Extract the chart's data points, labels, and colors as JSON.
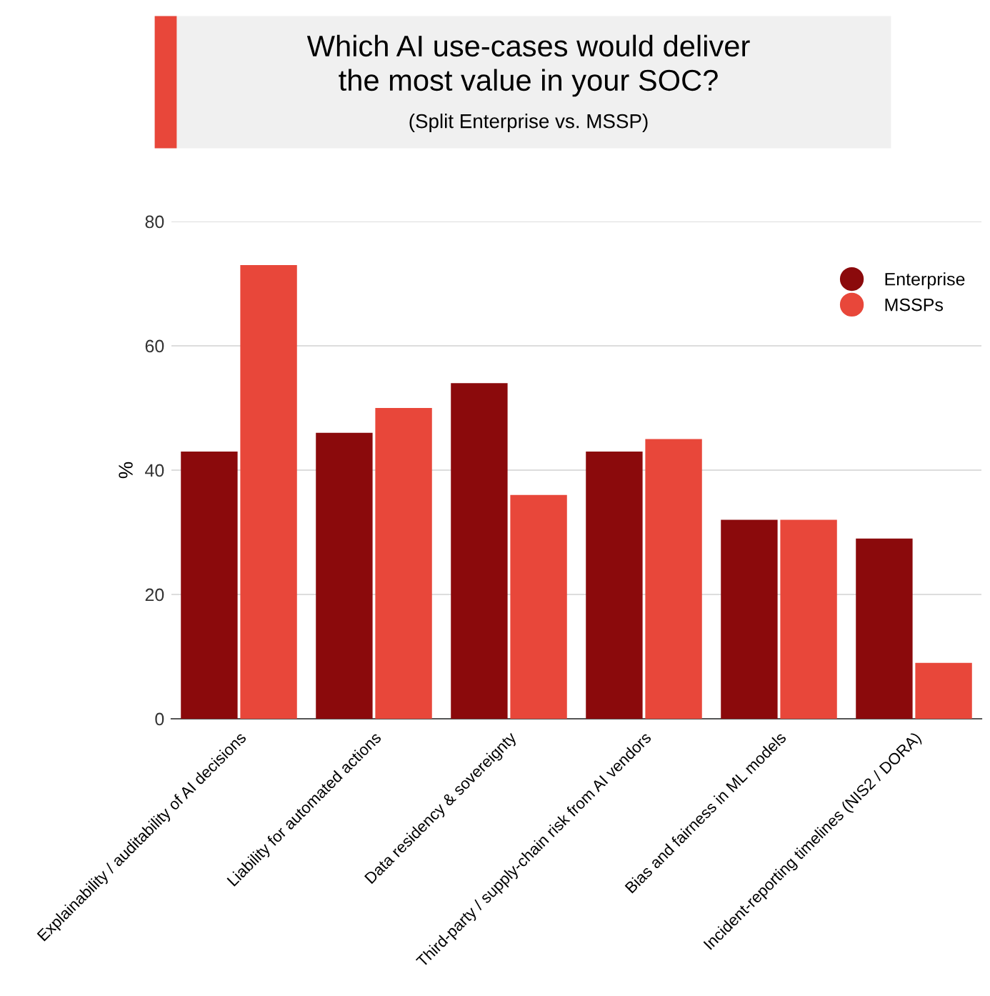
{
  "chart_data": {
    "type": "bar",
    "title": "Which AI use-cases would deliver\nthe most value in your SOC?",
    "subtitle": "(Split Enterprise vs. MSSP)",
    "ylabel": "%",
    "categories": [
      "Explainability / auditability of AI decisions",
      "Liability for automated actions",
      "Data residency & sovereignty",
      "Third-party / supply-chain risk from AI vendors",
      "Bias and fairness in ML models",
      "Incident-reporting timelines (NIS2 / DORA)"
    ],
    "series": [
      {
        "name": "Enterprise",
        "color": "#8b0a0c",
        "values": [
          43,
          46,
          54,
          43,
          32,
          29
        ]
      },
      {
        "name": "MSSPs",
        "color": "#e8473a",
        "values": [
          73,
          50,
          36,
          45,
          32,
          9
        ]
      }
    ],
    "ylim": [
      0,
      80
    ],
    "yticks": [
      0,
      20,
      40,
      60,
      80
    ],
    "grid": "y",
    "legend": "top right"
  }
}
